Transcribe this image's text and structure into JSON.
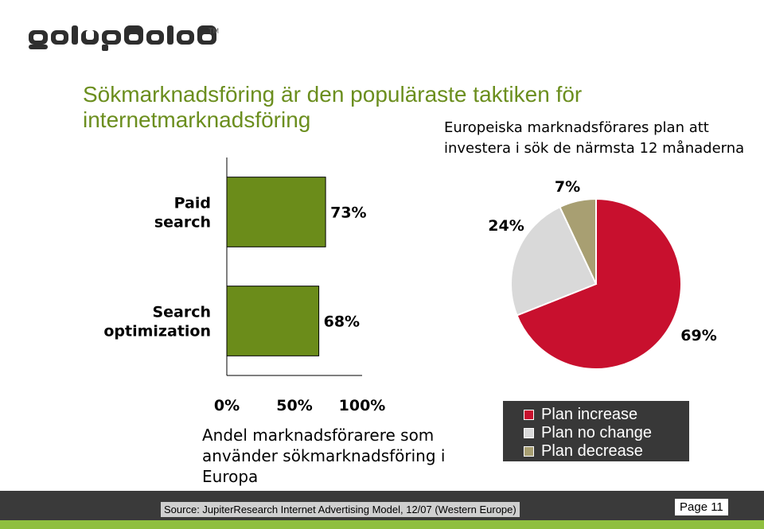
{
  "brand": {
    "logo_text": "getupdated",
    "trademark": "TM"
  },
  "slide_title": "Sökmarknadsföring är den populäraste taktiken för internetmarknadsföring",
  "chart_data": [
    {
      "type": "bar",
      "orientation": "horizontal",
      "categories": [
        "Paid search",
        "Search optimization"
      ],
      "values": [
        73,
        68
      ],
      "data_labels": [
        "73%",
        "68%"
      ],
      "xlim": [
        0,
        100
      ],
      "xticks": [
        "0%",
        "50%",
        "100%"
      ],
      "xlabel": "Andel marknadsförarere som använder sökmarknadsföring i Europa",
      "bar_color": "#6b8c1a",
      "grid": false
    },
    {
      "type": "pie",
      "title": "Europeiska marknadsförares plan att investera i sök de närmsta 12 månaderna",
      "slices": [
        {
          "name": "Plan increase",
          "value": 69,
          "label": "69%",
          "color": "#c8102e"
        },
        {
          "name": "Plan no change",
          "value": 24,
          "label": "24%",
          "color": "#d9d9d9"
        },
        {
          "name": "Plan decrease",
          "value": 7,
          "label": "7%",
          "color": "#a89f72"
        }
      ],
      "legend_placement": "bottom-right"
    }
  ],
  "footer": {
    "source": "Source: JupiterResearch Internet Advertising Model, 12/07 (Western Europe)",
    "page": "Page 11"
  }
}
